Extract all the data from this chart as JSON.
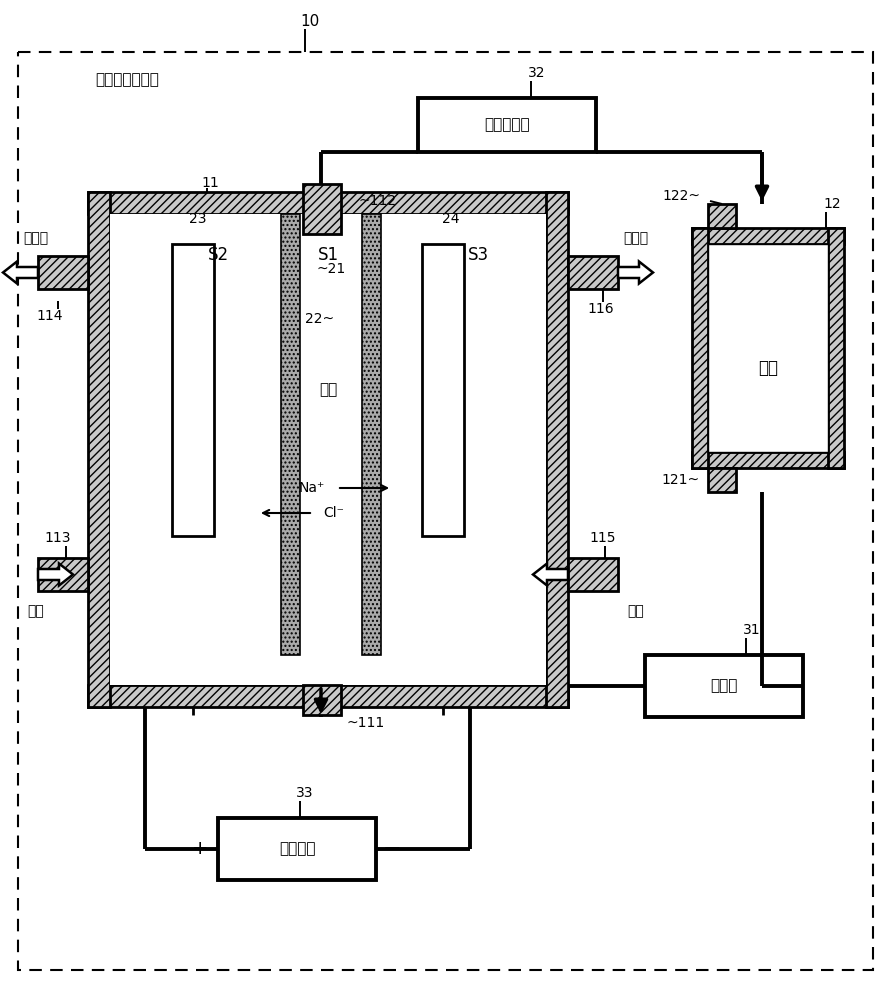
{
  "title_num": "10",
  "main_label": "电解水生成装置",
  "pressure_valve_label": "压力调整阀",
  "circulation_pump_label": "循环泵",
  "dc_power_label": "直流电源",
  "brine_label": "盐水",
  "acid_water": "酸性水",
  "alkali_water": "碱性水",
  "raw_water": "原水",
  "brine_center": "盐水",
  "na_plus": "Na⁺",
  "cl_minus": "Cl⁻",
  "plus": "+",
  "minus": "−",
  "S1": "S1",
  "S2": "S2",
  "S3": "S3",
  "lbl_10": "10",
  "lbl_11": "11",
  "lbl_12": "12",
  "lbl_21": "~21",
  "lbl_22": "22~",
  "lbl_23": "23",
  "lbl_24": "24",
  "lbl_31": "31",
  "lbl_32": "32",
  "lbl_33": "33",
  "lbl_111": "~111",
  "lbl_112": "~112",
  "lbl_113": "113",
  "lbl_114": "114",
  "lbl_115": "115",
  "lbl_116": "116",
  "lbl_121": "121~",
  "lbl_122": "122~"
}
